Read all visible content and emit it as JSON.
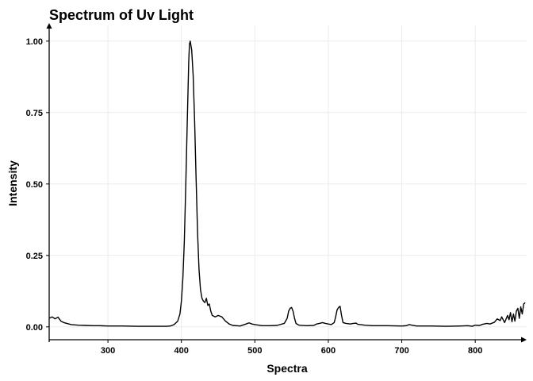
{
  "chart_data": {
    "type": "line",
    "title": "Spectrum of Uv Light",
    "xlabel": "Spectra",
    "ylabel": "Intensity",
    "xlim": [
      220,
      870
    ],
    "ylim": [
      -0.045,
      1.055
    ],
    "x_ticks": [
      300,
      400,
      500,
      600,
      700,
      800
    ],
    "x_tick_labels": [
      "300",
      "400",
      "500",
      "600",
      "700",
      "800"
    ],
    "y_ticks": [
      0.0,
      0.25,
      0.5,
      0.75,
      1.0
    ],
    "y_tick_labels": [
      "0.00",
      "0.25",
      "0.50",
      "0.75",
      "1.00"
    ],
    "grid": true,
    "legend": "none",
    "series": [
      {
        "color": "#000000",
        "x": [
          220,
          224,
          228,
          232,
          236,
          240,
          250,
          260,
          270,
          280,
          290,
          300,
          320,
          340,
          360,
          380,
          385,
          390,
          395,
          398,
          400,
          402,
          404,
          406,
          408,
          410,
          411,
          412,
          414,
          416,
          418,
          420,
          422,
          424,
          426,
          428,
          430,
          432,
          434,
          436,
          438,
          440,
          442,
          446,
          450,
          455,
          460,
          465,
          470,
          480,
          488,
          492,
          496,
          500,
          510,
          520,
          530,
          540,
          544,
          546,
          548,
          550,
          552,
          554,
          556,
          560,
          570,
          580,
          584,
          588,
          592,
          596,
          600,
          604,
          608,
          610,
          612,
          614,
          616,
          618,
          620,
          624,
          630,
          634,
          638,
          640,
          650,
          660,
          680,
          700,
          706,
          710,
          714,
          720,
          740,
          760,
          780,
          790,
          796,
          800,
          806,
          810,
          816,
          820,
          826,
          830,
          834,
          836,
          840,
          844,
          846,
          848,
          850,
          852,
          854,
          856,
          858,
          860,
          862,
          864,
          866,
          868
        ],
        "y": [
          0.03,
          0.035,
          0.028,
          0.034,
          0.02,
          0.015,
          0.008,
          0.006,
          0.005,
          0.004,
          0.004,
          0.003,
          0.003,
          0.002,
          0.002,
          0.002,
          0.003,
          0.008,
          0.02,
          0.045,
          0.09,
          0.17,
          0.3,
          0.5,
          0.72,
          0.93,
          0.99,
          1.0,
          0.97,
          0.88,
          0.72,
          0.52,
          0.33,
          0.2,
          0.13,
          0.1,
          0.09,
          0.085,
          0.1,
          0.075,
          0.08,
          0.055,
          0.04,
          0.035,
          0.04,
          0.035,
          0.02,
          0.01,
          0.005,
          0.003,
          0.01,
          0.014,
          0.01,
          0.008,
          0.004,
          0.004,
          0.005,
          0.012,
          0.03,
          0.055,
          0.065,
          0.068,
          0.055,
          0.03,
          0.012,
          0.006,
          0.004,
          0.005,
          0.01,
          0.012,
          0.015,
          0.012,
          0.01,
          0.008,
          0.015,
          0.035,
          0.06,
          0.068,
          0.072,
          0.04,
          0.015,
          0.012,
          0.01,
          0.012,
          0.013,
          0.009,
          0.006,
          0.004,
          0.004,
          0.003,
          0.004,
          0.008,
          0.006,
          0.003,
          0.003,
          0.002,
          0.003,
          0.004,
          0.002,
          0.006,
          0.005,
          0.009,
          0.012,
          0.01,
          0.016,
          0.028,
          0.022,
          0.035,
          0.015,
          0.04,
          0.025,
          0.05,
          0.018,
          0.045,
          0.02,
          0.055,
          0.065,
          0.03,
          0.07,
          0.045,
          0.08,
          0.085
        ]
      }
    ]
  }
}
